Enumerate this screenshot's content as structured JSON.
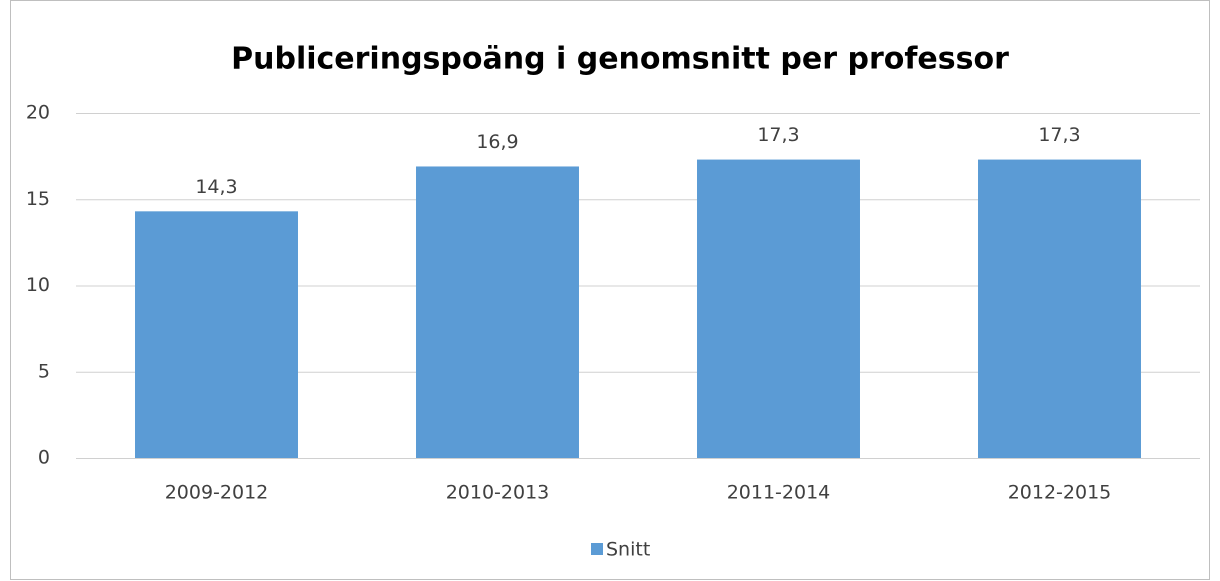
{
  "chart_data": {
    "type": "bar",
    "title": "Publiceringspoäng i genomsnitt per professor",
    "categories": [
      "2009-2012",
      "2010-2013",
      "2011-2014",
      "2012-2015"
    ],
    "series": [
      {
        "name": "Snitt",
        "color": "#5b9bd5",
        "values": [
          14.3,
          16.9,
          17.3,
          17.3
        ],
        "value_labels": [
          "14,3",
          "16,9",
          "17,3",
          "17,3"
        ]
      }
    ],
    "ylim": [
      0,
      20
    ],
    "yticks": [
      0,
      5,
      10,
      15,
      20
    ],
    "grid": true,
    "legend": "bottom"
  }
}
